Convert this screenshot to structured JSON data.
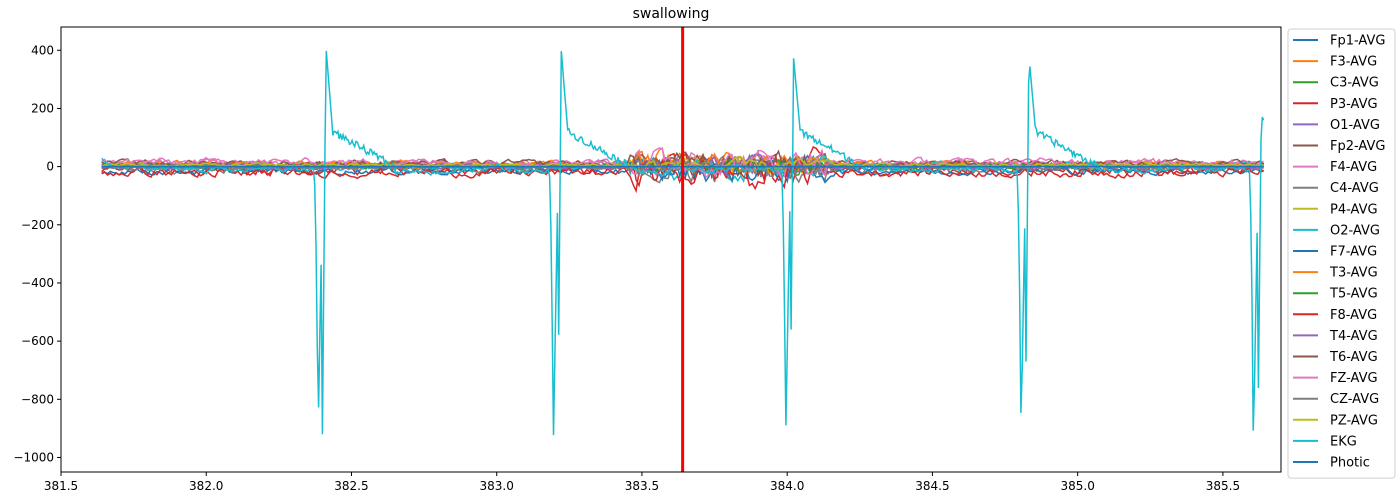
{
  "chart_data": {
    "type": "line",
    "title": "swallowing",
    "xlabel": "",
    "ylabel": "",
    "xlim": [
      381.5,
      385.7
    ],
    "ylim": [
      -1050,
      480
    ],
    "xticks": [
      "381.5",
      "382.0",
      "382.5",
      "383.0",
      "383.5",
      "384.0",
      "384.5",
      "385.0",
      "385.5"
    ],
    "yticks": [
      "400",
      "200",
      "0",
      "−200",
      "−400",
      "−600",
      "−800",
      "−1000"
    ],
    "xtick_values": [
      381.5,
      382.0,
      382.5,
      383.0,
      383.5,
      384.0,
      384.5,
      385.0,
      385.5
    ],
    "ytick_values": [
      400,
      200,
      0,
      -200,
      -400,
      -600,
      -800,
      -1000
    ],
    "marker_x": 383.64,
    "marker_color": "#ff0000",
    "legend_position": "right, outside",
    "grid": false,
    "x_range": [
      381.64,
      385.64
    ],
    "series": [
      {
        "name": "Fp1-AVG",
        "color": "#1f77b4",
        "amp": 18,
        "offset": 0
      },
      {
        "name": "F3-AVG",
        "color": "#ff7f0e",
        "amp": 22,
        "offset": 5
      },
      {
        "name": "C3-AVG",
        "color": "#2ca02c",
        "amp": 15,
        "offset": 2
      },
      {
        "name": "P3-AVG",
        "color": "#d62728",
        "amp": 30,
        "offset": -10
      },
      {
        "name": "O1-AVG",
        "color": "#9467bd",
        "amp": 14,
        "offset": 0
      },
      {
        "name": "Fp2-AVG",
        "color": "#8c564b",
        "amp": 18,
        "offset": 8
      },
      {
        "name": "F4-AVG",
        "color": "#e377c2",
        "amp": 20,
        "offset": 10
      },
      {
        "name": "C4-AVG",
        "color": "#7f7f7f",
        "amp": 25,
        "offset": -5
      },
      {
        "name": "P4-AVG",
        "color": "#bcbd22",
        "amp": 12,
        "offset": 5
      },
      {
        "name": "O2-AVG",
        "color": "#17becf",
        "amp": 22,
        "offset": 0
      },
      {
        "name": "F7-AVG",
        "color": "#1f77b4",
        "amp": 20,
        "offset": -15
      },
      {
        "name": "T3-AVG",
        "color": "#ff7f0e",
        "amp": 18,
        "offset": 8
      },
      {
        "name": "T5-AVG",
        "color": "#2ca02c",
        "amp": 12,
        "offset": 3
      },
      {
        "name": "F8-AVG",
        "color": "#d62728",
        "amp": 25,
        "offset": -20
      },
      {
        "name": "T4-AVG",
        "color": "#9467bd",
        "amp": 15,
        "offset": 0
      },
      {
        "name": "T6-AVG",
        "color": "#8c564b",
        "amp": 18,
        "offset": 12
      },
      {
        "name": "FZ-AVG",
        "color": "#e377c2",
        "amp": 22,
        "offset": 15
      },
      {
        "name": "CZ-AVG",
        "color": "#7f7f7f",
        "amp": 15,
        "offset": 0
      },
      {
        "name": "PZ-AVG",
        "color": "#bcbd22",
        "amp": 10,
        "offset": 5
      },
      {
        "name": "EKG",
        "color": "#17becf",
        "amp": 0,
        "offset": 0
      },
      {
        "name": "Photic",
        "color": "#1f77b4",
        "amp": 0,
        "offset": 0
      }
    ],
    "ekg_beats": [
      {
        "x": 382.4,
        "min": -920,
        "max": 415
      },
      {
        "x": 383.21,
        "min": -955,
        "max": 400
      },
      {
        "x": 384.01,
        "min": -920,
        "max": 375
      },
      {
        "x": 384.82,
        "min": -910,
        "max": 385
      },
      {
        "x": 385.62,
        "min": -975,
        "max": 180
      }
    ]
  }
}
